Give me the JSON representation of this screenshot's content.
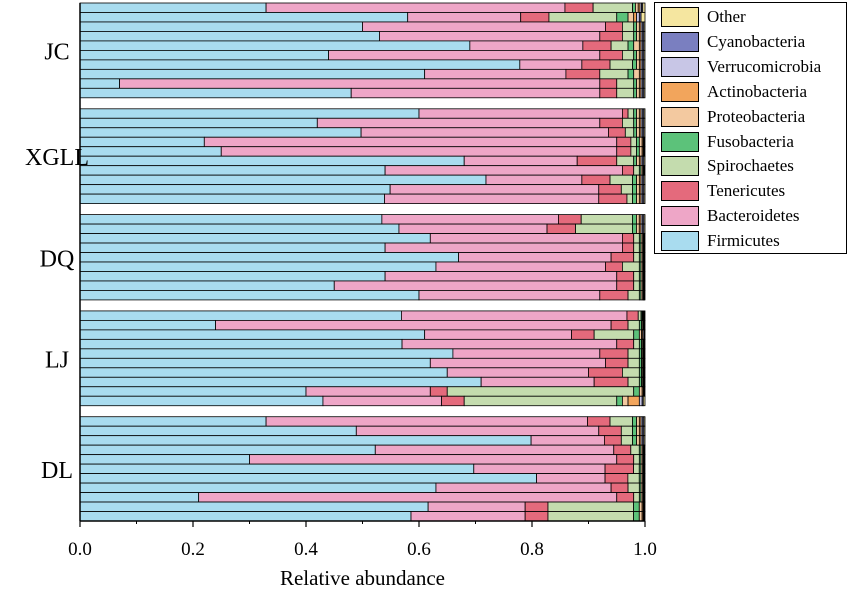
{
  "chart_data": {
    "type": "bar",
    "orientation": "horizontal",
    "stacked": true,
    "xlabel": "Relative abundance",
    "xlim": [
      0,
      1.0
    ],
    "xticks": [
      "0.0",
      "0.2",
      "0.4",
      "0.6",
      "0.8",
      "1.0"
    ],
    "group_labels": [
      "JC",
      "XGLL",
      "DQ",
      "LJ",
      "DL"
    ],
    "series_order": [
      "Firmicutes",
      "Bacteroidetes",
      "Tenericutes",
      "Spirochaetes",
      "Fusobacteria",
      "Proteobacteria",
      "Actinobacteria",
      "Verrucomicrobia",
      "Cyanobacteria",
      "Other"
    ],
    "legend": [
      {
        "name": "Other",
        "color": "#f5e6a0"
      },
      {
        "name": "Cyanobacteria",
        "color": "#7a7fc0"
      },
      {
        "name": "Verrucomicrobia",
        "color": "#c8c6e6"
      },
      {
        "name": "Actinobacteria",
        "color": "#f2a55c"
      },
      {
        "name": "Proteobacteria",
        "color": "#f3c9a0"
      },
      {
        "name": "Fusobacteria",
        "color": "#5cc27a"
      },
      {
        "name": "Spirochaetes",
        "color": "#c4dcae"
      },
      {
        "name": "Tenericutes",
        "color": "#e46a7c"
      },
      {
        "name": "Bacteroidetes",
        "color": "#eea6c7"
      },
      {
        "name": "Firmicutes",
        "color": "#a9dcef"
      }
    ],
    "groups": [
      {
        "label": "JC",
        "samples": [
          [
            0.33,
            0.53,
            0.05,
            0.07,
            0.005,
            0.005,
            0.003,
            0.003,
            0.002,
            0.004
          ],
          [
            0.58,
            0.2,
            0.05,
            0.12,
            0.02,
            0.01,
            0.005,
            0.005,
            0.003,
            0.007
          ],
          [
            0.5,
            0.43,
            0.03,
            0.02,
            0.005,
            0.005,
            0.003,
            0.003,
            0.002,
            0.002
          ],
          [
            0.53,
            0.39,
            0.04,
            0.02,
            0.005,
            0.005,
            0.003,
            0.003,
            0.002,
            0.002
          ],
          [
            0.69,
            0.2,
            0.05,
            0.03,
            0.01,
            0.01,
            0.003,
            0.003,
            0.002,
            0.002
          ],
          [
            0.44,
            0.48,
            0.04,
            0.02,
            0.005,
            0.005,
            0.003,
            0.003,
            0.002,
            0.002
          ],
          [
            0.78,
            0.11,
            0.05,
            0.04,
            0.007,
            0.005,
            0.003,
            0.003,
            0.002,
            0.002
          ],
          [
            0.61,
            0.25,
            0.06,
            0.05,
            0.01,
            0.01,
            0.003,
            0.003,
            0.002,
            0.002
          ],
          [
            0.07,
            0.85,
            0.03,
            0.03,
            0.005,
            0.005,
            0.003,
            0.003,
            0.002,
            0.002
          ],
          [
            0.48,
            0.44,
            0.03,
            0.03,
            0.005,
            0.005,
            0.003,
            0.003,
            0.002,
            0.002
          ]
        ]
      },
      {
        "label": "XGLL",
        "samples": [
          [
            0.6,
            0.36,
            0.01,
            0.01,
            0.005,
            0.005,
            0.003,
            0.003,
            0.002,
            0.002
          ],
          [
            0.42,
            0.5,
            0.04,
            0.02,
            0.005,
            0.005,
            0.003,
            0.003,
            0.002,
            0.002
          ],
          [
            0.5,
            0.44,
            0.03,
            0.015,
            0.005,
            0.005,
            0.003,
            0.003,
            0.002,
            0.002
          ],
          [
            0.22,
            0.73,
            0.025,
            0.01,
            0.005,
            0.005,
            0.002,
            0.001,
            0.001,
            0.001
          ],
          [
            0.25,
            0.7,
            0.025,
            0.01,
            0.005,
            0.005,
            0.002,
            0.001,
            0.001,
            0.001
          ],
          [
            0.68,
            0.2,
            0.07,
            0.03,
            0.005,
            0.005,
            0.003,
            0.003,
            0.002,
            0.002
          ],
          [
            0.54,
            0.42,
            0.02,
            0.01,
            0.003,
            0.003,
            0.001,
            0.001,
            0.001,
            0.001
          ],
          [
            0.72,
            0.17,
            0.05,
            0.04,
            0.007,
            0.005,
            0.003,
            0.003,
            0.002,
            0.002
          ],
          [
            0.55,
            0.37,
            0.04,
            0.02,
            0.007,
            0.005,
            0.003,
            0.003,
            0.002,
            0.002
          ],
          [
            0.54,
            0.38,
            0.05,
            0.01,
            0.007,
            0.005,
            0.003,
            0.003,
            0.002,
            0.002
          ]
        ]
      },
      {
        "label": "DQ",
        "samples": [
          [
            0.53,
            0.31,
            0.04,
            0.09,
            0.007,
            0.005,
            0.003,
            0.003,
            0.002,
            0.002
          ],
          [
            0.56,
            0.26,
            0.05,
            0.1,
            0.007,
            0.005,
            0.003,
            0.003,
            0.002,
            0.002
          ],
          [
            0.62,
            0.34,
            0.02,
            0.01,
            0.003,
            0.003,
            0.001,
            0.001,
            0.001,
            0.001
          ],
          [
            0.54,
            0.42,
            0.02,
            0.01,
            0.003,
            0.003,
            0.001,
            0.001,
            0.001,
            0.001
          ],
          [
            0.67,
            0.27,
            0.04,
            0.01,
            0.003,
            0.003,
            0.001,
            0.001,
            0.001,
            0.001
          ],
          [
            0.63,
            0.3,
            0.03,
            0.03,
            0.003,
            0.003,
            0.001,
            0.001,
            0.001,
            0.001
          ],
          [
            0.54,
            0.41,
            0.03,
            0.01,
            0.003,
            0.003,
            0.001,
            0.001,
            0.001,
            0.001
          ],
          [
            0.45,
            0.5,
            0.03,
            0.01,
            0.003,
            0.003,
            0.001,
            0.001,
            0.001,
            0.001
          ],
          [
            0.6,
            0.32,
            0.05,
            0.02,
            0.003,
            0.003,
            0.001,
            0.001,
            0.001,
            0.001
          ]
        ]
      },
      {
        "label": "LJ",
        "samples": [
          [
            0.57,
            0.4,
            0.02,
            0.005,
            0.002,
            0.001,
            0.001,
            0.001,
            0.001,
            0.001
          ],
          [
            0.24,
            0.7,
            0.03,
            0.02,
            0.004,
            0.002,
            0.001,
            0.001,
            0.001,
            0.001
          ],
          [
            0.61,
            0.26,
            0.04,
            0.07,
            0.01,
            0.004,
            0.002,
            0.002,
            0.001,
            0.001
          ],
          [
            0.57,
            0.38,
            0.03,
            0.01,
            0.004,
            0.002,
            0.001,
            0.001,
            0.001,
            0.001
          ],
          [
            0.66,
            0.26,
            0.05,
            0.02,
            0.004,
            0.002,
            0.001,
            0.001,
            0.001,
            0.001
          ],
          [
            0.62,
            0.31,
            0.04,
            0.02,
            0.004,
            0.002,
            0.001,
            0.001,
            0.001,
            0.001
          ],
          [
            0.65,
            0.25,
            0.06,
            0.03,
            0.004,
            0.002,
            0.001,
            0.001,
            0.001,
            0.001
          ],
          [
            0.71,
            0.2,
            0.06,
            0.02,
            0.004,
            0.002,
            0.001,
            0.001,
            0.001,
            0.001
          ],
          [
            0.4,
            0.22,
            0.03,
            0.33,
            0.01,
            0.005,
            0.002,
            0.001,
            0.001,
            0.001
          ],
          [
            0.43,
            0.21,
            0.04,
            0.27,
            0.01,
            0.01,
            0.02,
            0.005,
            0.002,
            0.003
          ]
        ]
      },
      {
        "label": "DL",
        "samples": [
          [
            0.33,
            0.57,
            0.04,
            0.04,
            0.007,
            0.005,
            0.003,
            0.003,
            0.002,
            0.002
          ],
          [
            0.49,
            0.43,
            0.04,
            0.02,
            0.007,
            0.005,
            0.003,
            0.003,
            0.002,
            0.002
          ],
          [
            0.8,
            0.13,
            0.03,
            0.02,
            0.007,
            0.005,
            0.003,
            0.003,
            0.002,
            0.002
          ],
          [
            0.52,
            0.42,
            0.03,
            0.015,
            0.003,
            0.003,
            0.001,
            0.001,
            0.001,
            0.001
          ],
          [
            0.3,
            0.65,
            0.03,
            0.01,
            0.003,
            0.003,
            0.001,
            0.001,
            0.001,
            0.001
          ],
          [
            0.69,
            0.23,
            0.05,
            0.01,
            0.003,
            0.003,
            0.001,
            0.001,
            0.001,
            0.001
          ],
          [
            0.8,
            0.12,
            0.04,
            0.02,
            0.003,
            0.003,
            0.001,
            0.001,
            0.001,
            0.001
          ],
          [
            0.63,
            0.31,
            0.03,
            0.02,
            0.003,
            0.003,
            0.001,
            0.001,
            0.001,
            0.001
          ],
          [
            0.21,
            0.74,
            0.03,
            0.01,
            0.003,
            0.003,
            0.001,
            0.001,
            0.001,
            0.001
          ],
          [
            0.61,
            0.17,
            0.04,
            0.15,
            0.01,
            0.005,
            0.002,
            0.001,
            0.001,
            0.001
          ],
          [
            0.58,
            0.2,
            0.04,
            0.15,
            0.01,
            0.005,
            0.002,
            0.001,
            0.001,
            0.001
          ]
        ]
      }
    ]
  }
}
